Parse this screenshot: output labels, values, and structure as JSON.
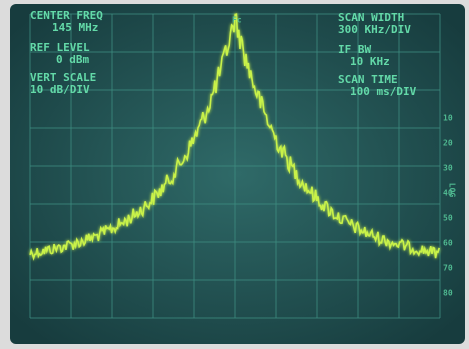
{
  "readouts": {
    "center_freq": {
      "label": "CENTER FREQ",
      "value": "145 MHz"
    },
    "ref_level": {
      "label": "REF LEVEL",
      "value": "0 dBm"
    },
    "vert_scale": {
      "label": "VERT SCALE",
      "value": "10 dB/DIV"
    },
    "scan_width": {
      "label": "SCAN WIDTH",
      "value": "300 KHz/DIV"
    },
    "if_bw": {
      "label": "IF BW",
      "value": "10 KHz"
    },
    "scan_time": {
      "label": "SCAN TIME",
      "value": "100 ms/DIV"
    }
  },
  "marker": "Fc",
  "scale": {
    "label": "LOG",
    "ticks": [
      "10",
      "20",
      "30",
      "40",
      "50",
      "60",
      "70",
      "80"
    ]
  }
}
